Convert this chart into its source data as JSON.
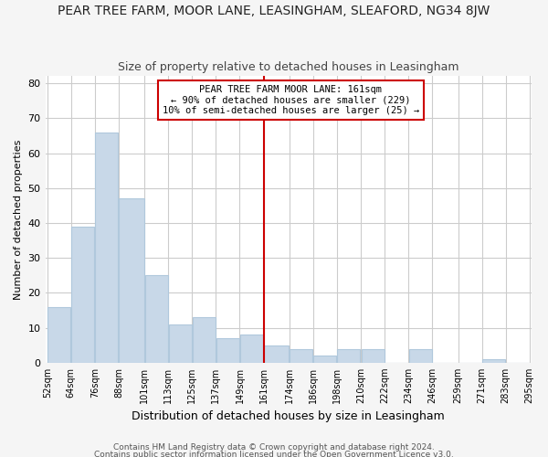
{
  "title": "PEAR TREE FARM, MOOR LANE, LEASINGHAM, SLEAFORD, NG34 8JW",
  "subtitle": "Size of property relative to detached houses in Leasingham",
  "xlabel": "Distribution of detached houses by size in Leasingham",
  "ylabel": "Number of detached properties",
  "bar_color": "#c8d8e8",
  "bar_edge_color": "#b0c8dc",
  "bin_edges": [
    52,
    64,
    76,
    88,
    101,
    113,
    125,
    137,
    149,
    161,
    174,
    186,
    198,
    210,
    222,
    234,
    246,
    259,
    271,
    283,
    295
  ],
  "bar_heights": [
    16,
    39,
    66,
    47,
    25,
    11,
    13,
    7,
    8,
    5,
    4,
    2,
    4,
    4,
    0,
    4,
    0,
    0,
    1,
    0
  ],
  "tick_labels": [
    "52sqm",
    "64sqm",
    "76sqm",
    "88sqm",
    "101sqm",
    "113sqm",
    "125sqm",
    "137sqm",
    "149sqm",
    "161sqm",
    "174sqm",
    "186sqm",
    "198sqm",
    "210sqm",
    "222sqm",
    "234sqm",
    "246sqm",
    "259sqm",
    "271sqm",
    "283sqm",
    "295sqm"
  ],
  "vline_x": 161,
  "vline_color": "#cc0000",
  "annotation_title": "PEAR TREE FARM MOOR LANE: 161sqm",
  "annotation_line1": "← 90% of detached houses are smaller (229)",
  "annotation_line2": "10% of semi-detached houses are larger (25) →",
  "annotation_box_color": "#ffffff",
  "annotation_box_edge": "#cc0000",
  "ylim": [
    0,
    82
  ],
  "yticks": [
    0,
    10,
    20,
    30,
    40,
    50,
    60,
    70,
    80
  ],
  "footer1": "Contains HM Land Registry data © Crown copyright and database right 2024.",
  "footer2": "Contains public sector information licensed under the Open Government Licence v3.0.",
  "background_color": "#f5f5f5",
  "plot_background": "#ffffff",
  "grid_color": "#cccccc",
  "title_fontsize": 10,
  "subtitle_fontsize": 9,
  "xlabel_fontsize": 9,
  "ylabel_fontsize": 8,
  "tick_fontsize": 7,
  "annotation_fontsize": 7.5,
  "footer_fontsize": 6.5
}
